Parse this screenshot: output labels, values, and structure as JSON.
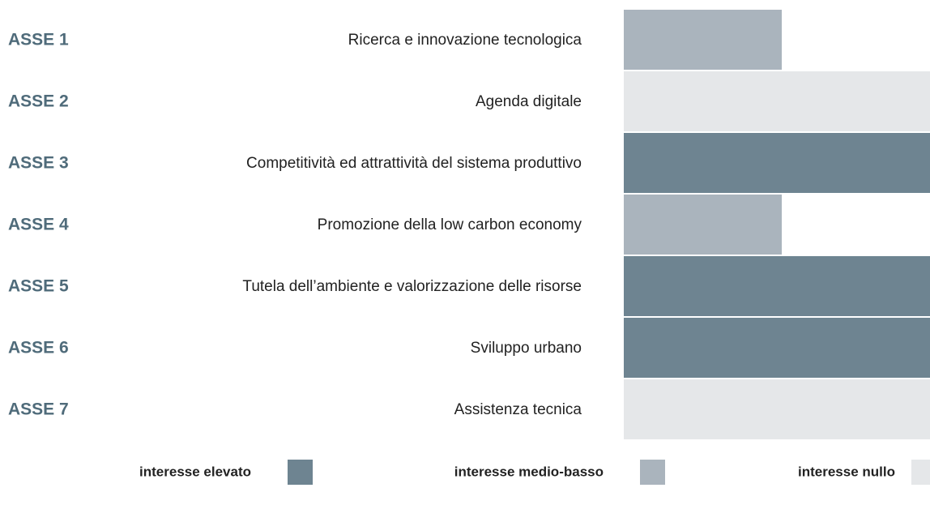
{
  "legend": [
    {
      "label": "interesse elevato",
      "color": "#6e8491"
    },
    {
      "label": "interesse medio-basso",
      "color": "#aab4bd"
    },
    {
      "label": "interesse nullo",
      "color": "#e5e7e9"
    }
  ],
  "rows": [
    {
      "asse": "ASSE 1",
      "label": "Ricerca e innovazione tecnologica",
      "level": 1
    },
    {
      "asse": "ASSE 2",
      "label": "Agenda digitale",
      "level": 2
    },
    {
      "asse": "ASSE 3",
      "label": "Competitività ed attrattività del sistema produttivo",
      "level": 0
    },
    {
      "asse": "ASSE 4",
      "label": "Promozione della low carbon economy",
      "level": 1
    },
    {
      "asse": "ASSE 5",
      "label": "Tutela dell’ambiente e valorizzazione delle risorse",
      "level": 0
    },
    {
      "asse": "ASSE 6",
      "label": "Sviluppo urbano",
      "level": 0
    },
    {
      "asse": "ASSE 7",
      "label": "Assistenza tecnica",
      "level": 2
    }
  ]
}
